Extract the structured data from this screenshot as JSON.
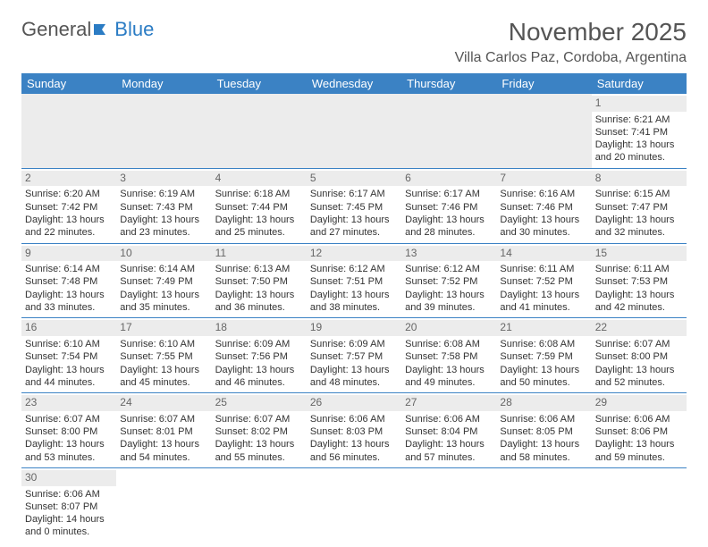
{
  "logo": {
    "part1": "General",
    "part2": "Blue"
  },
  "title": "November 2025",
  "subtitle": "Villa Carlos Paz, Cordoba, Argentina",
  "colors": {
    "header_bg": "#3b82c4",
    "border": "#3b82c4",
    "shade": "#ececec"
  },
  "day_headers": [
    "Sunday",
    "Monday",
    "Tuesday",
    "Wednesday",
    "Thursday",
    "Friday",
    "Saturday"
  ],
  "weeks": [
    [
      null,
      null,
      null,
      null,
      null,
      null,
      {
        "day": "1",
        "sunrise": "Sunrise: 6:21 AM",
        "sunset": "Sunset: 7:41 PM",
        "daylight": "Daylight: 13 hours and 20 minutes."
      }
    ],
    [
      {
        "day": "2",
        "sunrise": "Sunrise: 6:20 AM",
        "sunset": "Sunset: 7:42 PM",
        "daylight": "Daylight: 13 hours and 22 minutes."
      },
      {
        "day": "3",
        "sunrise": "Sunrise: 6:19 AM",
        "sunset": "Sunset: 7:43 PM",
        "daylight": "Daylight: 13 hours and 23 minutes."
      },
      {
        "day": "4",
        "sunrise": "Sunrise: 6:18 AM",
        "sunset": "Sunset: 7:44 PM",
        "daylight": "Daylight: 13 hours and 25 minutes."
      },
      {
        "day": "5",
        "sunrise": "Sunrise: 6:17 AM",
        "sunset": "Sunset: 7:45 PM",
        "daylight": "Daylight: 13 hours and 27 minutes."
      },
      {
        "day": "6",
        "sunrise": "Sunrise: 6:17 AM",
        "sunset": "Sunset: 7:46 PM",
        "daylight": "Daylight: 13 hours and 28 minutes."
      },
      {
        "day": "7",
        "sunrise": "Sunrise: 6:16 AM",
        "sunset": "Sunset: 7:46 PM",
        "daylight": "Daylight: 13 hours and 30 minutes."
      },
      {
        "day": "8",
        "sunrise": "Sunrise: 6:15 AM",
        "sunset": "Sunset: 7:47 PM",
        "daylight": "Daylight: 13 hours and 32 minutes."
      }
    ],
    [
      {
        "day": "9",
        "sunrise": "Sunrise: 6:14 AM",
        "sunset": "Sunset: 7:48 PM",
        "daylight": "Daylight: 13 hours and 33 minutes."
      },
      {
        "day": "10",
        "sunrise": "Sunrise: 6:14 AM",
        "sunset": "Sunset: 7:49 PM",
        "daylight": "Daylight: 13 hours and 35 minutes."
      },
      {
        "day": "11",
        "sunrise": "Sunrise: 6:13 AM",
        "sunset": "Sunset: 7:50 PM",
        "daylight": "Daylight: 13 hours and 36 minutes."
      },
      {
        "day": "12",
        "sunrise": "Sunrise: 6:12 AM",
        "sunset": "Sunset: 7:51 PM",
        "daylight": "Daylight: 13 hours and 38 minutes."
      },
      {
        "day": "13",
        "sunrise": "Sunrise: 6:12 AM",
        "sunset": "Sunset: 7:52 PM",
        "daylight": "Daylight: 13 hours and 39 minutes."
      },
      {
        "day": "14",
        "sunrise": "Sunrise: 6:11 AM",
        "sunset": "Sunset: 7:52 PM",
        "daylight": "Daylight: 13 hours and 41 minutes."
      },
      {
        "day": "15",
        "sunrise": "Sunrise: 6:11 AM",
        "sunset": "Sunset: 7:53 PM",
        "daylight": "Daylight: 13 hours and 42 minutes."
      }
    ],
    [
      {
        "day": "16",
        "sunrise": "Sunrise: 6:10 AM",
        "sunset": "Sunset: 7:54 PM",
        "daylight": "Daylight: 13 hours and 44 minutes."
      },
      {
        "day": "17",
        "sunrise": "Sunrise: 6:10 AM",
        "sunset": "Sunset: 7:55 PM",
        "daylight": "Daylight: 13 hours and 45 minutes."
      },
      {
        "day": "18",
        "sunrise": "Sunrise: 6:09 AM",
        "sunset": "Sunset: 7:56 PM",
        "daylight": "Daylight: 13 hours and 46 minutes."
      },
      {
        "day": "19",
        "sunrise": "Sunrise: 6:09 AM",
        "sunset": "Sunset: 7:57 PM",
        "daylight": "Daylight: 13 hours and 48 minutes."
      },
      {
        "day": "20",
        "sunrise": "Sunrise: 6:08 AM",
        "sunset": "Sunset: 7:58 PM",
        "daylight": "Daylight: 13 hours and 49 minutes."
      },
      {
        "day": "21",
        "sunrise": "Sunrise: 6:08 AM",
        "sunset": "Sunset: 7:59 PM",
        "daylight": "Daylight: 13 hours and 50 minutes."
      },
      {
        "day": "22",
        "sunrise": "Sunrise: 6:07 AM",
        "sunset": "Sunset: 8:00 PM",
        "daylight": "Daylight: 13 hours and 52 minutes."
      }
    ],
    [
      {
        "day": "23",
        "sunrise": "Sunrise: 6:07 AM",
        "sunset": "Sunset: 8:00 PM",
        "daylight": "Daylight: 13 hours and 53 minutes."
      },
      {
        "day": "24",
        "sunrise": "Sunrise: 6:07 AM",
        "sunset": "Sunset: 8:01 PM",
        "daylight": "Daylight: 13 hours and 54 minutes."
      },
      {
        "day": "25",
        "sunrise": "Sunrise: 6:07 AM",
        "sunset": "Sunset: 8:02 PM",
        "daylight": "Daylight: 13 hours and 55 minutes."
      },
      {
        "day": "26",
        "sunrise": "Sunrise: 6:06 AM",
        "sunset": "Sunset: 8:03 PM",
        "daylight": "Daylight: 13 hours and 56 minutes."
      },
      {
        "day": "27",
        "sunrise": "Sunrise: 6:06 AM",
        "sunset": "Sunset: 8:04 PM",
        "daylight": "Daylight: 13 hours and 57 minutes."
      },
      {
        "day": "28",
        "sunrise": "Sunrise: 6:06 AM",
        "sunset": "Sunset: 8:05 PM",
        "daylight": "Daylight: 13 hours and 58 minutes."
      },
      {
        "day": "29",
        "sunrise": "Sunrise: 6:06 AM",
        "sunset": "Sunset: 8:06 PM",
        "daylight": "Daylight: 13 hours and 59 minutes."
      }
    ],
    [
      {
        "day": "30",
        "sunrise": "Sunrise: 6:06 AM",
        "sunset": "Sunset: 8:07 PM",
        "daylight": "Daylight: 14 hours and 0 minutes."
      },
      null,
      null,
      null,
      null,
      null,
      null
    ]
  ]
}
